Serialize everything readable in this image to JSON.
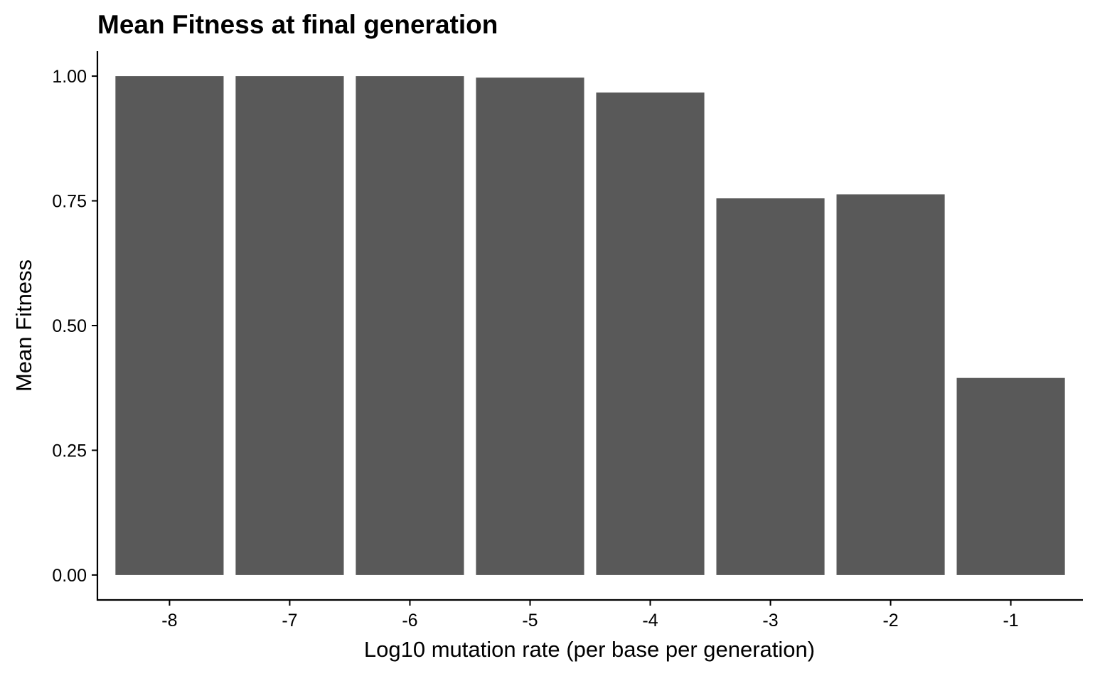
{
  "chart_data": {
    "type": "bar",
    "title": "Mean Fitness at final generation",
    "xlabel": "Log10 mutation rate (per base per generation)",
    "ylabel": "Mean Fitness",
    "categories": [
      "-8",
      "-7",
      "-6",
      "-5",
      "-4",
      "-3",
      "-2",
      "-1"
    ],
    "values": [
      1.0,
      1.0,
      1.0,
      0.997,
      0.967,
      0.755,
      0.763,
      0.395
    ],
    "ylim": [
      -0.05,
      1.05
    ],
    "yticks": [
      0.0,
      0.25,
      0.5,
      0.75,
      1.0
    ],
    "ytick_labels": [
      "0.00",
      "0.25",
      "0.50",
      "0.75",
      "1.00"
    ],
    "bar_color": "#595959",
    "grid": false,
    "legend": "none"
  }
}
